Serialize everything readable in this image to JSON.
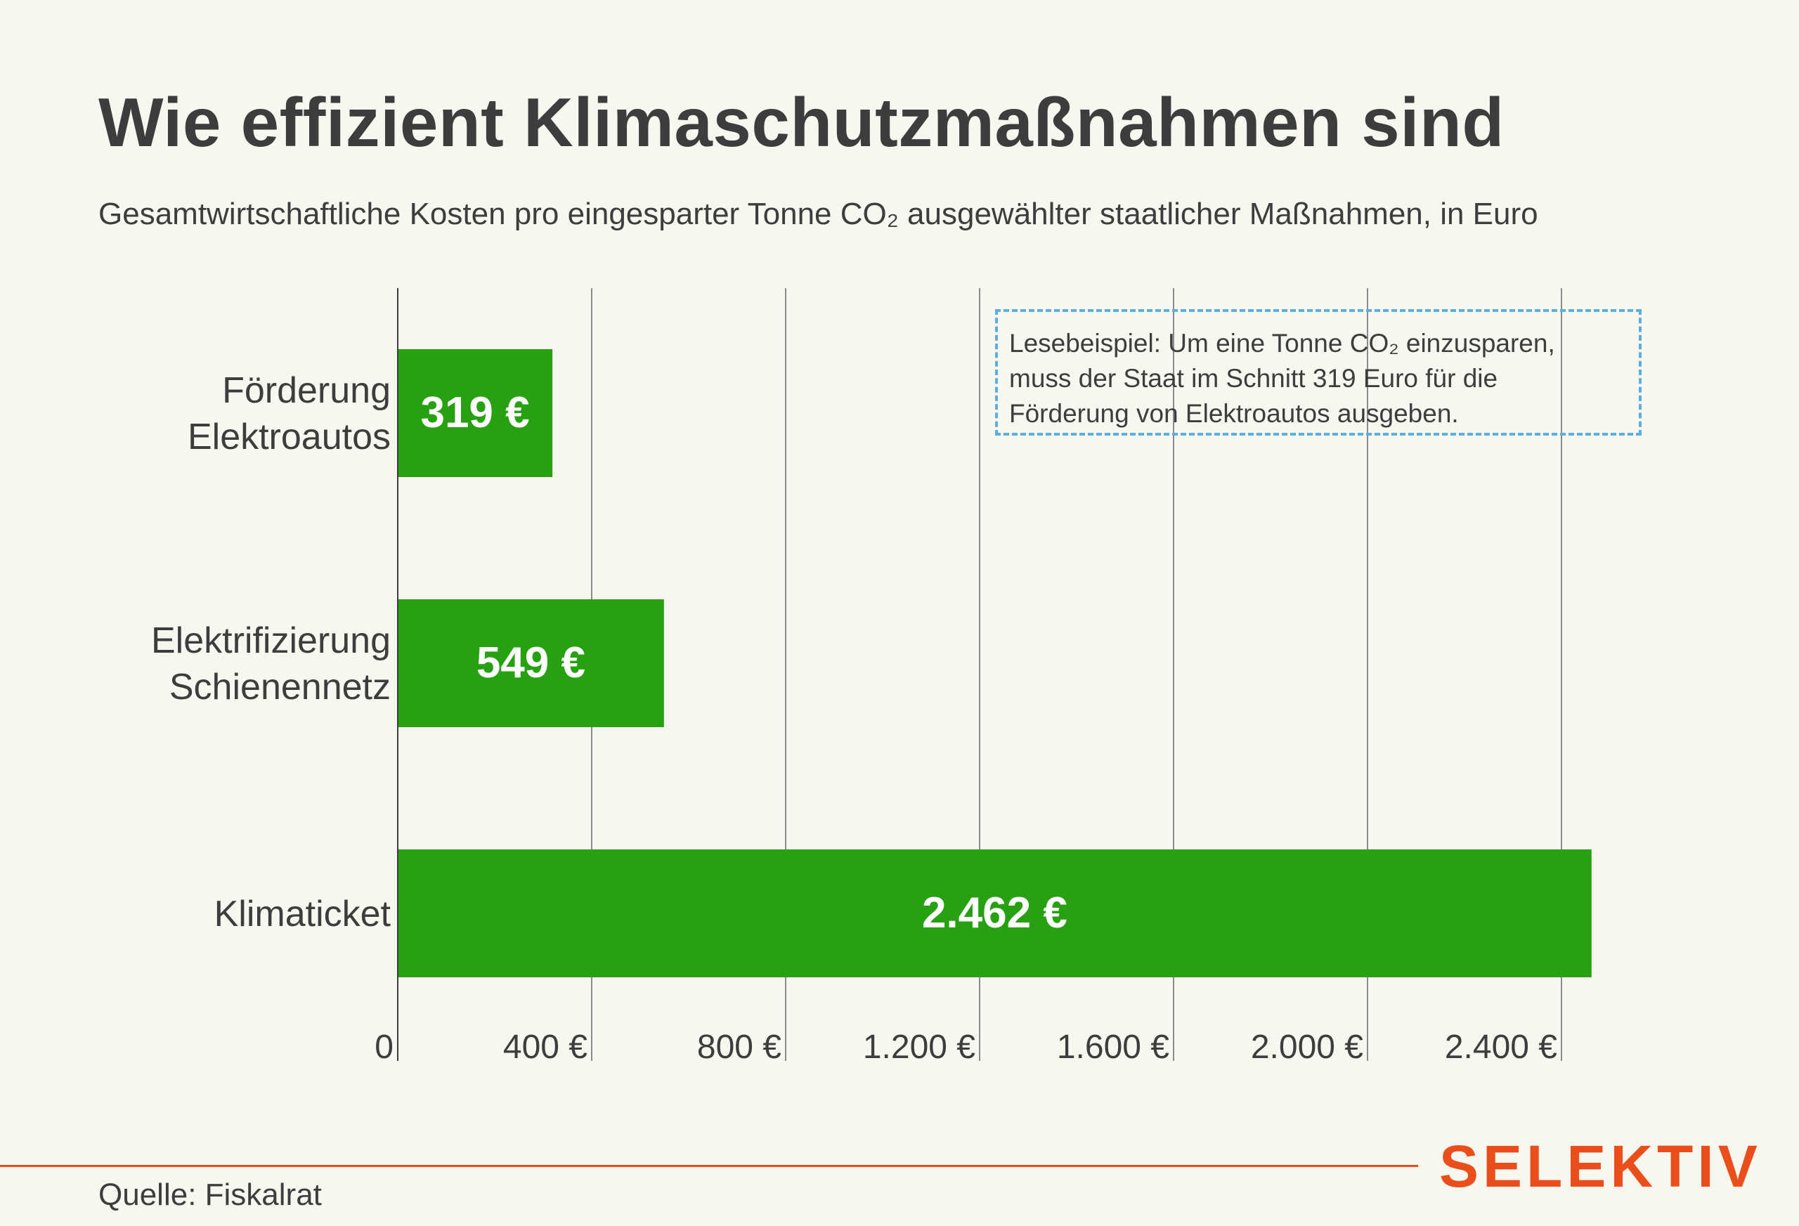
{
  "header": {
    "title": "Wie effizient Klimaschutzmaßnahmen sind",
    "subtitle": "Gesamtwirtschaftliche Kosten pro eingesparter Tonne CO₂ ausgewählter staatlicher Maßnahmen, in Euro"
  },
  "note": {
    "lines": [
      "Lesebeispiel: Um eine Tonne CO₂ einzusparen,",
      "muss der Staat im Schnitt 319 Euro für die",
      "Förderung von Elektroautos ausgeben."
    ]
  },
  "footer": {
    "source": "Quelle: Fiskalrat",
    "brand": "SELEKTIV"
  },
  "colors": {
    "bar": "#27a012",
    "background": "#f8f7ef",
    "accent": "#e94e1b",
    "note_border": "#5aaee0",
    "text": "#3d3d3d"
  },
  "chart_data": {
    "type": "bar",
    "orientation": "horizontal",
    "categories": [
      [
        "Förderung",
        "Elektroautos"
      ],
      [
        "Elektrifizierung",
        "Schienennetz"
      ],
      [
        "Klimaticket"
      ]
    ],
    "values": [
      319,
      549,
      2462
    ],
    "value_labels": [
      "319 €",
      "549 €",
      "2.462 €"
    ],
    "xlim": [
      0,
      2560
    ],
    "ticks": [
      0,
      400,
      800,
      1200,
      1600,
      2000,
      2400
    ],
    "tick_labels": [
      "0",
      "400 €",
      "800 €",
      "1.200 €",
      "1.600 €",
      "2.000 €",
      "2.400 €"
    ],
    "grid": true
  }
}
